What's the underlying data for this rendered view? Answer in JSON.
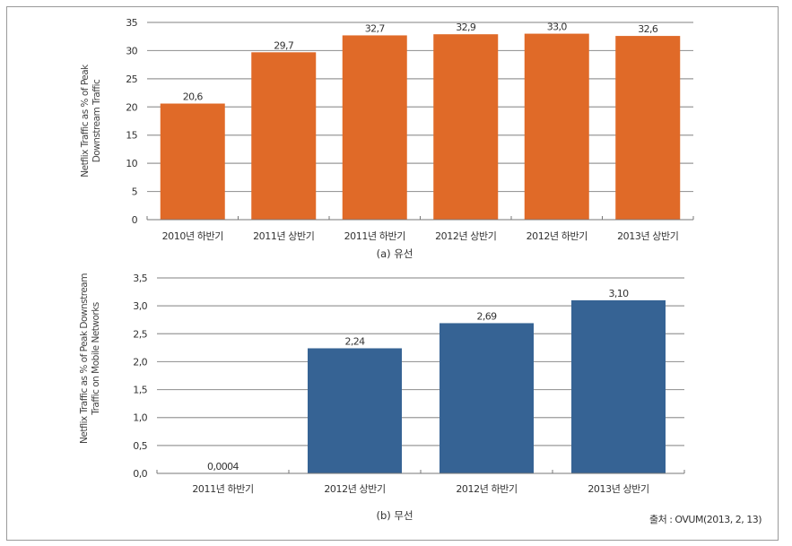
{
  "chart_data": [
    {
      "type": "bar",
      "title": "(a) 유선",
      "xlabel": "",
      "ylabel_lines": [
        "Netflix Traffic as % of Peak",
        "Downstream Traffic"
      ],
      "ylabel": "Netflix Traffic as % of Peak Downstream Traffic",
      "categories": [
        "2010년 하반기",
        "2011년 상반기",
        "2011년 하반기",
        "2012년 상반기",
        "2012년 하반기",
        "2013년 상반기"
      ],
      "values": [
        20.6,
        29.7,
        32.7,
        32.9,
        33.0,
        32.6
      ],
      "value_labels": [
        "20,6",
        "29,7",
        "32,7",
        "32,9",
        "33,0",
        "32,6"
      ],
      "ylim": [
        0,
        35
      ],
      "yticks": [
        0,
        5,
        10,
        15,
        20,
        25,
        30,
        35
      ],
      "ytick_labels": [
        "0",
        "5",
        "10",
        "15",
        "20",
        "25",
        "30",
        "35"
      ],
      "grid": true,
      "color": "#E06A28"
    },
    {
      "type": "bar",
      "title": "(b) 무선",
      "xlabel": "",
      "ylabel_lines": [
        "Netflix Traffic as % of Peak Downstream",
        "Traffic on Mobile Networks"
      ],
      "ylabel": "Netflix Traffic as % of Peak Downstream Traffic on Mobile Networks",
      "categories": [
        "2011년 하반기",
        "2012년 상반기",
        "2012년 하반기",
        "2013년 상반기"
      ],
      "values": [
        0.0004,
        2.24,
        2.69,
        3.1
      ],
      "value_labels": [
        "0,0004",
        "2,24",
        "2,69",
        "3,10"
      ],
      "ylim": [
        0,
        3.5
      ],
      "yticks": [
        0,
        0.5,
        1.0,
        1.5,
        2.0,
        2.5,
        3.0,
        3.5
      ],
      "ytick_labels": [
        "0,0",
        "0,5",
        "1,0",
        "1,5",
        "2,0",
        "2,5",
        "3,0",
        "3,5"
      ],
      "grid": true,
      "color": "#366394"
    }
  ],
  "source": "출처 : OVUM(2013, 2, 13)",
  "colors": {
    "gridline": "#9a9a9a",
    "axis": "#777777"
  }
}
